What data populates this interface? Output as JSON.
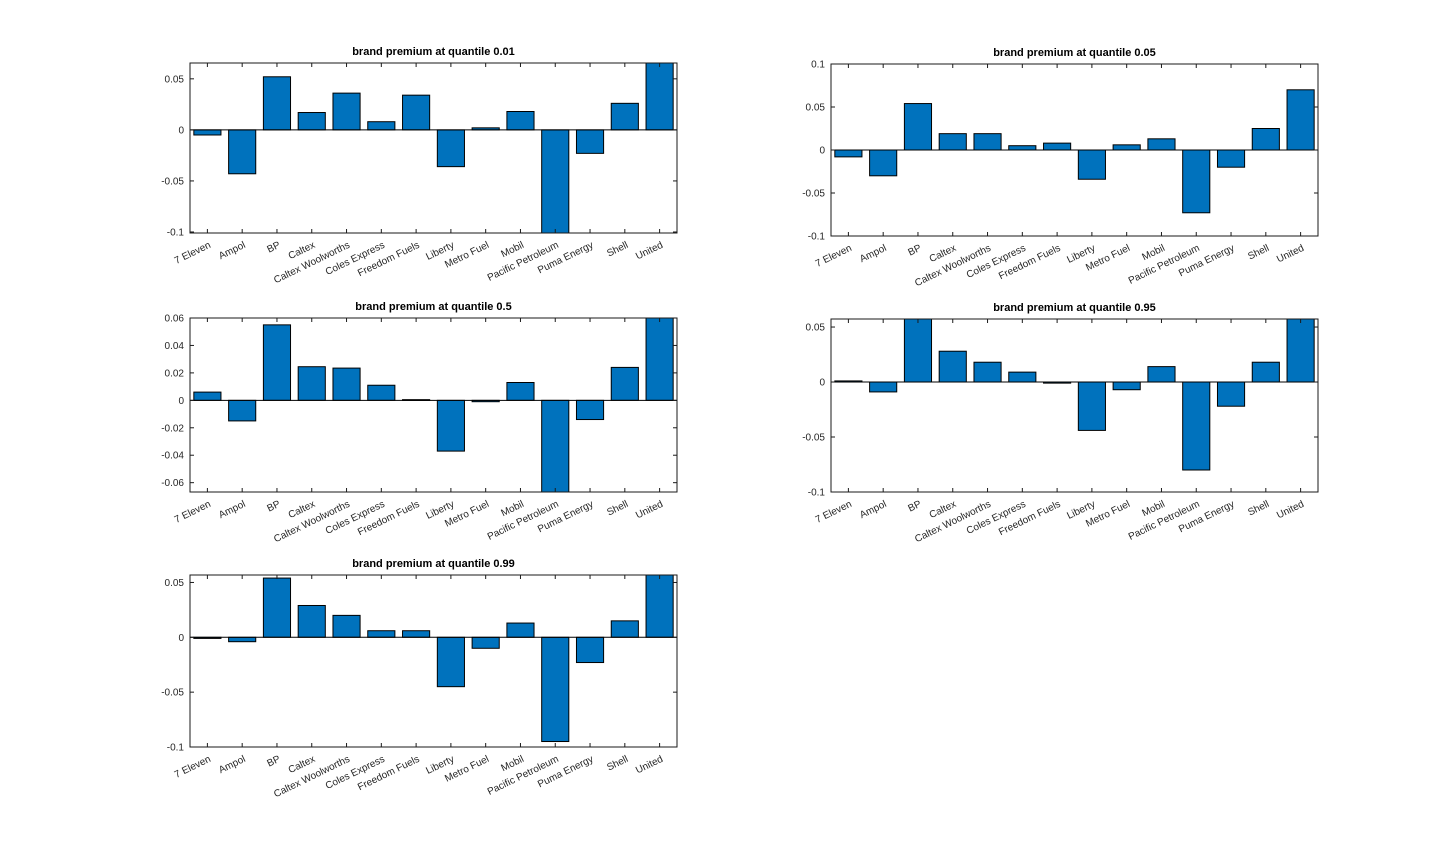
{
  "figure": {
    "background": "#ffffff",
    "bar_fill": "#0072BD",
    "bar_edge": "#000000",
    "axis_color": "#1a1a1a",
    "text_color": "#262626"
  },
  "chart_data": [
    {
      "type": "bar",
      "title": "brand premium at quantile 0.01",
      "quantile": "0.01",
      "categories": [
        "7 Eleven",
        "Ampol",
        "BP",
        "Caltex",
        "Caltex Woolworths",
        "Coles Express",
        "Freedom Fuels",
        "Liberty",
        "Metro Fuel",
        "Mobil",
        "Pacific Petroleum",
        "Puma Energy",
        "Shell",
        "United"
      ],
      "values": [
        -0.005,
        -0.043,
        0.052,
        0.017,
        0.036,
        0.008,
        0.034,
        -0.036,
        0.002,
        0.018,
        -0.105,
        -0.023,
        0.026,
        0.068
      ],
      "xlabel": "",
      "ylabel": "",
      "ylim": [
        -0.101,
        0.0655
      ],
      "yticks": [
        -0.1,
        -0.05,
        0,
        0.05
      ],
      "grid": false,
      "legend": "none"
    },
    {
      "type": "bar",
      "title": "brand premium at quantile 0.05",
      "quantile": "0.05",
      "categories": [
        "7 Eleven",
        "Ampol",
        "BP",
        "Caltex",
        "Caltex Woolworths",
        "Coles Express",
        "Freedom Fuels",
        "Liberty",
        "Metro Fuel",
        "Mobil",
        "Pacific Petroleum",
        "Puma Energy",
        "Shell",
        "United"
      ],
      "values": [
        -0.008,
        -0.03,
        0.054,
        0.019,
        0.019,
        0.005,
        0.008,
        -0.034,
        0.006,
        0.013,
        -0.073,
        -0.02,
        0.025,
        0.07
      ],
      "xlabel": "",
      "ylabel": "",
      "ylim": [
        -0.1,
        0.1
      ],
      "yticks": [
        -0.1,
        -0.05,
        0,
        0.05,
        0.1
      ],
      "grid": false,
      "legend": "none"
    },
    {
      "type": "bar",
      "title": "brand premium at quantile 0.5",
      "quantile": "0.5",
      "categories": [
        "7 Eleven",
        "Ampol",
        "BP",
        "Caltex",
        "Caltex Woolworths",
        "Coles Express",
        "Freedom Fuels",
        "Liberty",
        "Metro Fuel",
        "Mobil",
        "Pacific Petroleum",
        "Puma Energy",
        "Shell",
        "United"
      ],
      "values": [
        0.006,
        -0.015,
        0.055,
        0.0245,
        0.0235,
        0.011,
        0.0005,
        -0.037,
        -0.001,
        0.013,
        -0.075,
        -0.014,
        0.024,
        0.065
      ],
      "xlabel": "",
      "ylabel": "",
      "ylim": [
        -0.0668,
        0.06
      ],
      "yticks": [
        -0.06,
        -0.04,
        -0.02,
        0,
        0.02,
        0.04,
        0.06
      ],
      "grid": false,
      "legend": "none"
    },
    {
      "type": "bar",
      "title": "brand premium at quantile 0.95",
      "quantile": "0.95",
      "categories": [
        "7 Eleven",
        "Ampol",
        "BP",
        "Caltex",
        "Caltex Woolworths",
        "Coles Express",
        "Freedom Fuels",
        "Liberty",
        "Metro Fuel",
        "Mobil",
        "Pacific Petroleum",
        "Puma Energy",
        "Shell",
        "United"
      ],
      "values": [
        0.001,
        -0.009,
        0.058,
        0.028,
        0.018,
        0.009,
        -0.001,
        -0.044,
        -0.007,
        0.014,
        -0.08,
        -0.022,
        0.018,
        0.06
      ],
      "xlabel": "",
      "ylabel": "",
      "ylim": [
        -0.1,
        0.0573
      ],
      "yticks": [
        -0.1,
        -0.05,
        0,
        0.05
      ],
      "grid": false,
      "legend": "none"
    },
    {
      "type": "bar",
      "title": "brand premium at quantile 0.99",
      "quantile": "0.99",
      "categories": [
        "7 Eleven",
        "Ampol",
        "BP",
        "Caltex",
        "Caltex Woolworths",
        "Coles Express",
        "Freedom Fuels",
        "Liberty",
        "Metro Fuel",
        "Mobil",
        "Pacific Petroleum",
        "Puma Energy",
        "Shell",
        "United"
      ],
      "values": [
        -0.001,
        -0.004,
        0.054,
        0.029,
        0.02,
        0.006,
        0.006,
        -0.045,
        -0.01,
        0.013,
        -0.095,
        -0.023,
        0.015,
        0.06
      ],
      "xlabel": "",
      "ylabel": "",
      "ylim": [
        -0.1,
        0.0568
      ],
      "yticks": [
        -0.1,
        -0.05,
        0,
        0.05
      ],
      "grid": false,
      "legend": "none"
    }
  ]
}
